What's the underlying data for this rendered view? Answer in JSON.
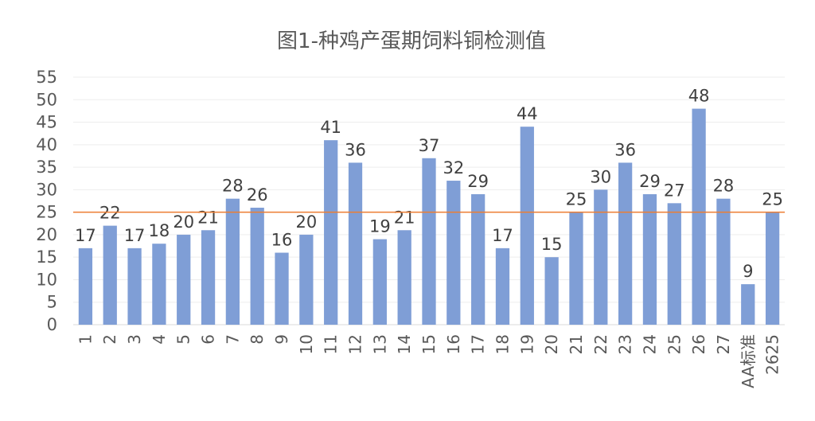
{
  "chart_data": {
    "type": "bar",
    "title": "图1-种鸡产蛋期饲料铜检测值",
    "categories": [
      "1",
      "2",
      "3",
      "4",
      "5",
      "6",
      "7",
      "8",
      "9",
      "10",
      "11",
      "12",
      "13",
      "14",
      "15",
      "16",
      "17",
      "18",
      "19",
      "20",
      "21",
      "22",
      "23",
      "24",
      "25",
      "26",
      "27",
      "AA标准",
      "2625"
    ],
    "values": [
      17,
      22,
      17,
      18,
      20,
      21,
      28,
      26,
      16,
      20,
      41,
      36,
      19,
      21,
      37,
      32,
      29,
      17,
      44,
      15,
      25,
      30,
      36,
      29,
      27,
      48,
      28,
      9,
      25
    ],
    "data_labels": [
      "17",
      "22",
      "17",
      "18",
      "20",
      "21",
      "28",
      "26",
      "16",
      "20",
      "41",
      "36",
      "19",
      "21",
      "37",
      "32",
      "29",
      "17",
      "44",
      "15",
      "25",
      "30",
      "36",
      "29",
      "27",
      "48",
      "28",
      "9",
      "25"
    ],
    "y_ticks": [
      "0",
      "5",
      "10",
      "15",
      "20",
      "25",
      "30",
      "35",
      "40",
      "45",
      "50",
      "55"
    ],
    "ylim": [
      0,
      55
    ],
    "reference_line": {
      "value": 25,
      "color": "#ED7D31"
    },
    "bar_color": "#7F9ED6",
    "grid": true,
    "legend": "none"
  }
}
